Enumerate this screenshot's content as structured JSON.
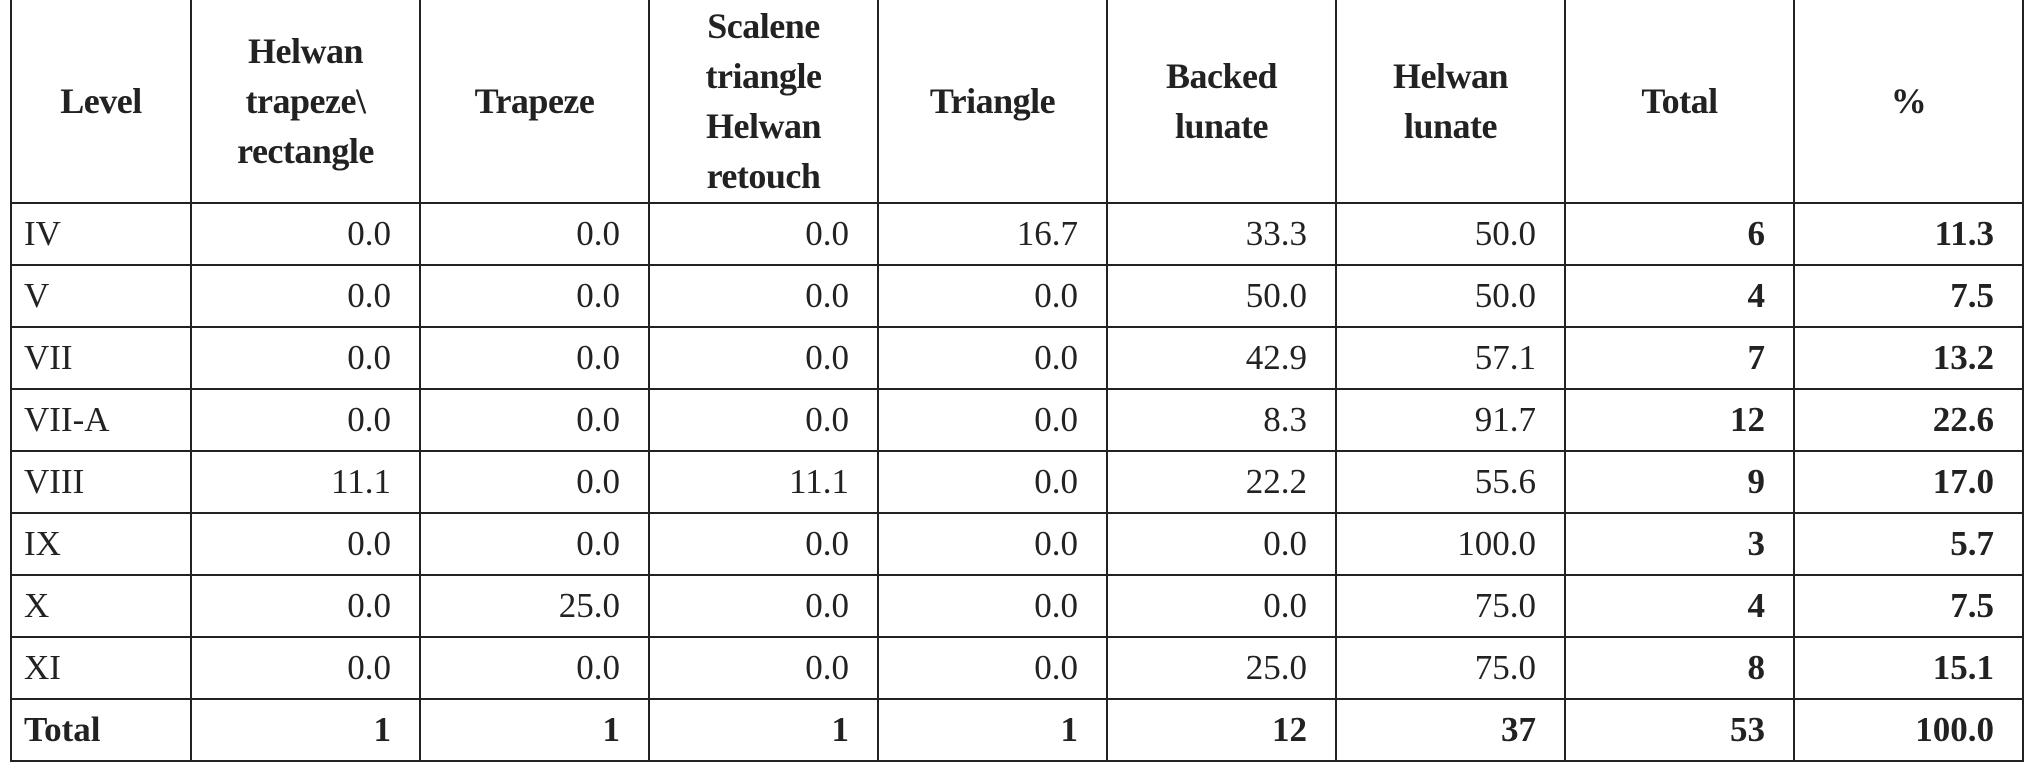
{
  "table": {
    "headers": [
      "Level",
      "Helwan trapeze\\ rectangle",
      "Trapeze",
      "Scalene triangle Helwan retouch",
      "Triangle",
      "Backed lunate",
      "Helwan lunate",
      "Total",
      "%"
    ],
    "rows": [
      [
        "IV",
        "0.0",
        "0.0",
        "0.0",
        "16.7",
        "33.3",
        "50.0",
        "6",
        "11.3"
      ],
      [
        "V",
        "0.0",
        "0.0",
        "0.0",
        "0.0",
        "50.0",
        "50.0",
        "4",
        "7.5"
      ],
      [
        "VII",
        "0.0",
        "0.0",
        "0.0",
        "0.0",
        "42.9",
        "57.1",
        "7",
        "13.2"
      ],
      [
        "VII-A",
        "0.0",
        "0.0",
        "0.0",
        "0.0",
        "8.3",
        "91.7",
        "12",
        "22.6"
      ],
      [
        "VIII",
        "11.1",
        "0.0",
        "11.1",
        "0.0",
        "22.2",
        "55.6",
        "9",
        "17.0"
      ],
      [
        "IX",
        "0.0",
        "0.0",
        "0.0",
        "0.0",
        "0.0",
        "100.0",
        "3",
        "5.7"
      ],
      [
        "X",
        "0.0",
        "25.0",
        "0.0",
        "0.0",
        "0.0",
        "75.0",
        "4",
        "7.5"
      ],
      [
        "XI",
        "0.0",
        "0.0",
        "0.0",
        "0.0",
        "25.0",
        "75.0",
        "8",
        "15.1"
      ]
    ],
    "total_row": [
      "Total",
      "1",
      "1",
      "1",
      "1",
      "12",
      "37",
      "53",
      "100.0"
    ]
  }
}
